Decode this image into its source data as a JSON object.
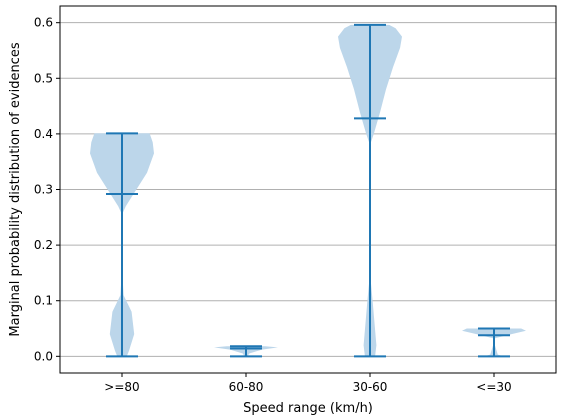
{
  "chart_data": {
    "type": "violin",
    "title": "",
    "xlabel": "Speed range (km/h)",
    "ylabel": "Marginal probability distribution of evidences",
    "categories": [
      ">=80",
      "60-80",
      "30-60",
      "<=30"
    ],
    "ylim": [
      -0.03,
      0.63
    ],
    "yticks": [
      0.0,
      0.1,
      0.2,
      0.3,
      0.4,
      0.5,
      0.6
    ],
    "ytick_labels": [
      "0.0",
      "0.1",
      "0.2",
      "0.3",
      "0.4",
      "0.5",
      "0.6"
    ],
    "grid": "horizontal",
    "colors": {
      "body": "#bcd6ea",
      "lines": "#1f77b4",
      "grid": "#b0b0b0"
    },
    "violins": [
      {
        "category": ">=80",
        "min": 0.0,
        "max": 0.401,
        "mean": 0.292,
        "density": [
          [
            0.0,
            0.15
          ],
          [
            0.01,
            0.22
          ],
          [
            0.04,
            0.38
          ],
          [
            0.08,
            0.3
          ],
          [
            0.11,
            0.05
          ],
          [
            0.16,
            0.0
          ],
          [
            0.255,
            0.0
          ],
          [
            0.27,
            0.12
          ],
          [
            0.3,
            0.45
          ],
          [
            0.33,
            0.78
          ],
          [
            0.365,
            1.0
          ],
          [
            0.385,
            0.96
          ],
          [
            0.395,
            0.9
          ],
          [
            0.401,
            0.86
          ]
        ]
      },
      {
        "category": "60-80",
        "min": 0.0,
        "max": 0.018,
        "mean": 0.014,
        "density": [
          [
            0.0,
            0.05
          ],
          [
            0.005,
            0.1
          ],
          [
            0.012,
            0.5
          ],
          [
            0.016,
            1.0
          ],
          [
            0.018,
            0.6
          ]
        ]
      },
      {
        "category": "30-60",
        "min": 0.0,
        "max": 0.596,
        "mean": 0.428,
        "density": [
          [
            0.0,
            0.16
          ],
          [
            0.02,
            0.2
          ],
          [
            0.06,
            0.14
          ],
          [
            0.1,
            0.08
          ],
          [
            0.15,
            0.0
          ],
          [
            0.38,
            0.0
          ],
          [
            0.4,
            0.12
          ],
          [
            0.44,
            0.32
          ],
          [
            0.48,
            0.5
          ],
          [
            0.52,
            0.72
          ],
          [
            0.555,
            0.94
          ],
          [
            0.575,
            1.0
          ],
          [
            0.59,
            0.8
          ],
          [
            0.596,
            0.6
          ]
        ]
      },
      {
        "category": "<=30",
        "min": 0.0,
        "max": 0.05,
        "mean": 0.038,
        "density": [
          [
            0.0,
            0.3
          ],
          [
            0.003,
            0.12
          ],
          [
            0.025,
            0.0
          ],
          [
            0.032,
            0.0
          ],
          [
            0.04,
            0.55
          ],
          [
            0.046,
            1.0
          ],
          [
            0.05,
            0.85
          ]
        ]
      }
    ]
  }
}
